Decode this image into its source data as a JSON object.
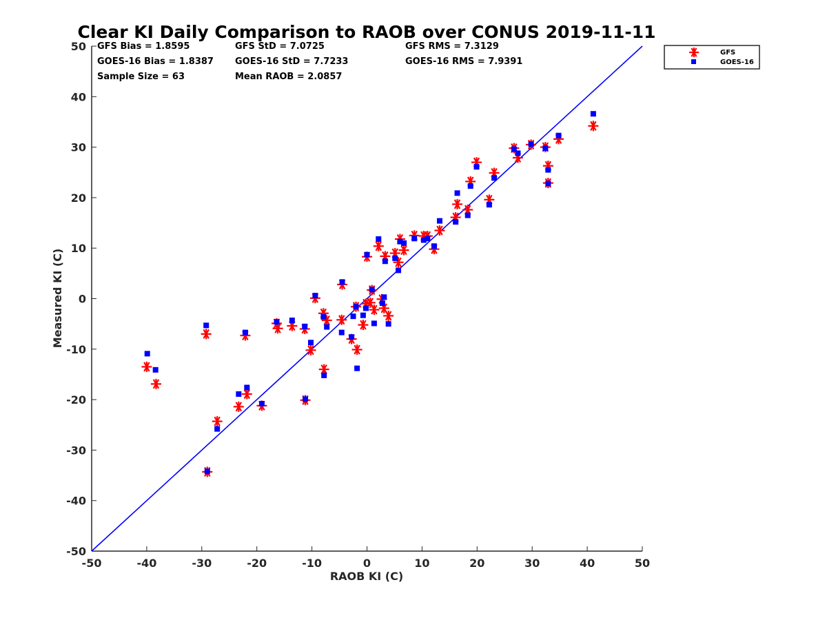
{
  "chart_data": {
    "type": "scatter",
    "title": "Clear KI Daily Comparison to RAOB over CONUS 2019-11-11",
    "xlabel": "RAOB KI (C)",
    "ylabel": "Measured KI (C)",
    "xlim": [
      -50,
      50
    ],
    "ylim": [
      -50,
      50
    ],
    "xticks": [
      "-50",
      "-40",
      "-30",
      "-20",
      "-10",
      "0",
      "10",
      "20",
      "30",
      "40",
      "50"
    ],
    "yticks": [
      "-50",
      "-40",
      "-30",
      "-20",
      "-10",
      "0",
      "10",
      "20",
      "30",
      "40",
      "50"
    ],
    "grid": false,
    "legend_position": "outside-top-right",
    "reference_line": "y = x",
    "stats": [
      [
        "GFS Bias = 1.8595",
        "GFS StD = 7.0725",
        "GFS RMS = 7.3129"
      ],
      [
        "GOES-16 Bias = 1.8387",
        "GOES-16 StD = 7.7233",
        "GOES-16 RMS = 7.9391"
      ],
      [
        "Sample Size = 63",
        "Mean RAOB = 2.0857",
        ""
      ]
    ],
    "series": [
      {
        "name": "GFS",
        "marker": "asterisk",
        "color": "#ff0000",
        "points": [
          [
            -40,
            -13.5
          ],
          [
            -38.3,
            -16.9
          ],
          [
            -29.2,
            -7.0
          ],
          [
            -29,
            -34.3
          ],
          [
            -27.2,
            -24.3
          ],
          [
            -23.3,
            -21.4
          ],
          [
            -22.1,
            -7.3
          ],
          [
            -21.8,
            -18.9
          ],
          [
            -19.1,
            -21.2
          ],
          [
            -16.4,
            -4.9
          ],
          [
            -16.2,
            -5.9
          ],
          [
            -13.6,
            -5.4
          ],
          [
            -11.3,
            -6.0
          ],
          [
            -11.2,
            -20.1
          ],
          [
            -10.2,
            -10.2
          ],
          [
            -9.4,
            0.1
          ],
          [
            -7.9,
            -2.9
          ],
          [
            -7.8,
            -14.0
          ],
          [
            -7.3,
            -4.3
          ],
          [
            -4.6,
            -4.2
          ],
          [
            -4.5,
            2.8
          ],
          [
            -2.8,
            -8.0
          ],
          [
            -2.0,
            -1.6
          ],
          [
            -1.8,
            -10.1
          ],
          [
            -0.7,
            -5.2
          ],
          [
            -0.2,
            -1.0
          ],
          [
            0.0,
            8.3
          ],
          [
            0.6,
            -0.8
          ],
          [
            0.9,
            1.7
          ],
          [
            1.3,
            -2.2
          ],
          [
            2.1,
            10.4
          ],
          [
            2.7,
            -0.1
          ],
          [
            3.1,
            -1.9
          ],
          [
            3.3,
            8.4
          ],
          [
            3.9,
            -3.4
          ],
          [
            5.1,
            9.0
          ],
          [
            5.7,
            7.2
          ],
          [
            6.0,
            11.8
          ],
          [
            6.7,
            9.6
          ],
          [
            8.6,
            12.5
          ],
          [
            10.3,
            12.4
          ],
          [
            11.0,
            12.4
          ],
          [
            12.2,
            9.8
          ],
          [
            13.2,
            13.5
          ],
          [
            16.1,
            16.1
          ],
          [
            16.4,
            18.7
          ],
          [
            18.3,
            17.6
          ],
          [
            18.8,
            23.2
          ],
          [
            19.9,
            27.0
          ],
          [
            22.2,
            19.6
          ],
          [
            23.1,
            24.9
          ],
          [
            26.7,
            29.8
          ],
          [
            27.4,
            27.9
          ],
          [
            29.8,
            30.5
          ],
          [
            32.4,
            30.0
          ],
          [
            32.9,
            26.3
          ],
          [
            32.9,
            22.9
          ],
          [
            34.8,
            31.6
          ],
          [
            41.1,
            34.2
          ]
        ]
      },
      {
        "name": "GOES-16",
        "marker": "square",
        "color": "#0000ff",
        "points": [
          [
            -39.9,
            -10.9
          ],
          [
            -38.4,
            -14.1
          ],
          [
            -29.2,
            -5.3
          ],
          [
            -29,
            -34.2
          ],
          [
            -27.2,
            -25.8
          ],
          [
            -23.3,
            -18.9
          ],
          [
            -22.1,
            -6.7
          ],
          [
            -21.8,
            -17.6
          ],
          [
            -19.1,
            -20.8
          ],
          [
            -16.4,
            -4.6
          ],
          [
            -13.6,
            -4.3
          ],
          [
            -11.3,
            -5.5
          ],
          [
            -11.2,
            -19.9
          ],
          [
            -10.2,
            -8.7
          ],
          [
            -9.4,
            0.6
          ],
          [
            -7.9,
            -3.6
          ],
          [
            -7.8,
            -15.2
          ],
          [
            -7.3,
            -5.6
          ],
          [
            -4.6,
            -6.7
          ],
          [
            -4.5,
            3.3
          ],
          [
            -2.8,
            -7.6
          ],
          [
            -2.5,
            -3.5
          ],
          [
            -2.0,
            -1.6
          ],
          [
            -1.8,
            -13.8
          ],
          [
            -0.7,
            -3.3
          ],
          [
            -0.2,
            -1.9
          ],
          [
            0.0,
            8.7
          ],
          [
            0.9,
            1.8
          ],
          [
            1.3,
            -4.9
          ],
          [
            2.1,
            11.8
          ],
          [
            2.8,
            -0.9
          ],
          [
            3.1,
            0.3
          ],
          [
            3.3,
            7.4
          ],
          [
            3.9,
            -5.0
          ],
          [
            5.1,
            8.0
          ],
          [
            5.7,
            5.6
          ],
          [
            6.0,
            11.3
          ],
          [
            6.7,
            11.0
          ],
          [
            8.6,
            11.9
          ],
          [
            10.3,
            11.6
          ],
          [
            11.0,
            11.9
          ],
          [
            12.2,
            10.4
          ],
          [
            13.2,
            15.4
          ],
          [
            16.1,
            15.2
          ],
          [
            16.4,
            20.9
          ],
          [
            18.3,
            16.5
          ],
          [
            18.8,
            22.3
          ],
          [
            19.9,
            26.1
          ],
          [
            22.2,
            18.6
          ],
          [
            23.1,
            23.9
          ],
          [
            26.7,
            29.6
          ],
          [
            27.4,
            28.8
          ],
          [
            29.8,
            30.6
          ],
          [
            32.4,
            29.8
          ],
          [
            32.9,
            25.5
          ],
          [
            32.9,
            22.8
          ],
          [
            34.8,
            32.3
          ],
          [
            41.1,
            36.6
          ]
        ]
      }
    ]
  }
}
